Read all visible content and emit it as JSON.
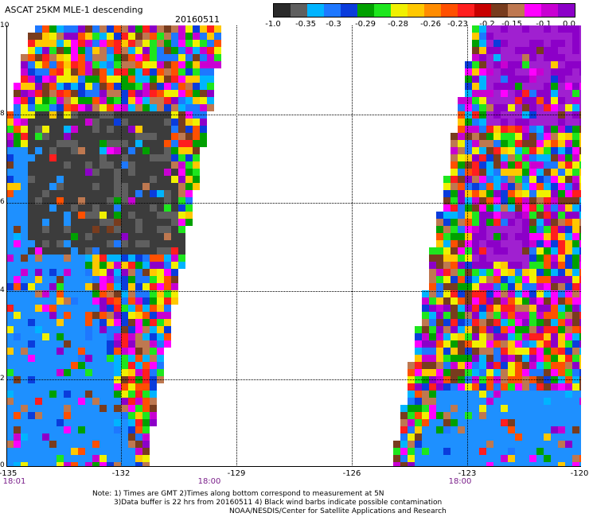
{
  "header": {
    "title": "ASCAT 25KM MLE-1 descending",
    "date": "20160511"
  },
  "colorbar": {
    "colors": [
      "#2a2a2a",
      "#5f5f5f",
      "#00b4ff",
      "#1e78ff",
      "#0a3cdc",
      "#00a000",
      "#1ee61e",
      "#f0f000",
      "#ffc800",
      "#ff8c00",
      "#ff5000",
      "#ff1e1e",
      "#c80000",
      "#783c1e",
      "#be7850",
      "#ff00ff",
      "#c800d2",
      "#8c00c8"
    ],
    "labels": [
      "-1.0",
      "-0.35",
      "-0.3",
      "-0.29",
      "-0.28",
      "-0.26",
      "-0.23",
      "-0.2",
      "-0.15",
      "-0.1",
      "0.0"
    ]
  },
  "axes": {
    "x_ticks": [
      "-135",
      "-132",
      "-129",
      "-126",
      "-123",
      "-120"
    ],
    "y_ticks": [
      "10",
      "8",
      "6",
      "4",
      "2",
      "0"
    ],
    "time_labels": [
      "18:01",
      "18:00",
      "18:00"
    ]
  },
  "notes": {
    "line1": "Note: 1) Times are GMT 2)Times along bottom correspond to measurement at 5N",
    "line2": "3)Data buffer is 22 hrs from 20160511 4) Black wind barbs indicate possible contamination",
    "line3": "NOAA/NESDIS/Center for Satellite Applications and Research"
  }
}
